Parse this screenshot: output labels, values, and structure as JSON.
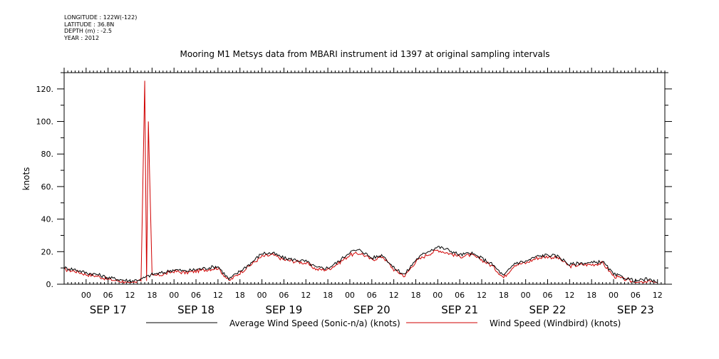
{
  "meta": {
    "longitude": "LONGITUDE : 122W(-122)",
    "latitude": "LATITUDE : 36.8N",
    "depth": "DEPTH (m) : -2.5",
    "year": "YEAR : 2012"
  },
  "chart_data": {
    "type": "line",
    "title": "Mooring M1 Metsys data from MBARI instrument id 1397 at original sampling intervals",
    "ylabel": "knots",
    "xlabel": "",
    "ylim": [
      0,
      130
    ],
    "yticks": [
      "0.",
      "20.",
      "40.",
      "60.",
      "80.",
      "100.",
      "120."
    ],
    "xlim_hours": [
      -6,
      158
    ],
    "hour_tick_labels": [
      "00",
      "06",
      "12",
      "18",
      "00",
      "06",
      "12",
      "18",
      "00",
      "06",
      "12",
      "18",
      "00",
      "06",
      "12",
      "18",
      "00",
      "06",
      "12",
      "18",
      "00",
      "06",
      "12",
      "18",
      "00",
      "06",
      "12"
    ],
    "day_labels": [
      "SEP 17",
      "SEP 18",
      "SEP 19",
      "SEP 20",
      "SEP 21",
      "SEP 22",
      "SEP 23"
    ],
    "grid": false,
    "legend_position": "bottom",
    "series": [
      {
        "name": "Average Wind Speed (Sonic-n/a) (knots)",
        "color": "#000000",
        "x_hours": [
          -6,
          -3,
          0,
          3,
          6,
          9,
          12,
          15,
          18,
          21,
          24,
          27,
          30,
          33,
          36,
          39,
          42,
          45,
          48,
          51,
          54,
          57,
          60,
          63,
          66,
          69,
          72,
          75,
          78,
          81,
          84,
          87,
          90,
          93,
          96,
          99,
          102,
          105,
          108,
          111,
          114,
          117,
          120,
          123,
          126,
          129,
          132,
          135,
          138,
          141,
          144,
          147,
          150,
          153,
          156
        ],
        "values": [
          10,
          9,
          7,
          6,
          4,
          3,
          2,
          3,
          6,
          7,
          9,
          8,
          9,
          10,
          11,
          3,
          8,
          13,
          19,
          19,
          16,
          15,
          14,
          10,
          10,
          14,
          20,
          21,
          16,
          18,
          10,
          6,
          15,
          20,
          23,
          21,
          18,
          19,
          16,
          12,
          5,
          13,
          14,
          17,
          18,
          17,
          12,
          13,
          13,
          14,
          6,
          4,
          2,
          3,
          1
        ]
      },
      {
        "name": "Wind Speed (Windbird) (knots)",
        "color": "#d00000",
        "x_hours": [
          -6,
          -3,
          0,
          3,
          6,
          9,
          12,
          15,
          16,
          16.5,
          17,
          18,
          21,
          24,
          27,
          30,
          33,
          36,
          39,
          42,
          45,
          48,
          51,
          54,
          57,
          60,
          63,
          66,
          69,
          72,
          75,
          78,
          81,
          84,
          87,
          90,
          93,
          96,
          99,
          102,
          105,
          108,
          111,
          114,
          117,
          120,
          123,
          126,
          129,
          132,
          135,
          138,
          141,
          144,
          147,
          150,
          153,
          156
        ],
        "values": [
          9,
          8,
          6,
          5,
          3,
          2,
          1,
          2,
          125,
          2,
          100,
          5,
          6,
          8,
          7,
          8,
          9,
          10,
          2,
          7,
          12,
          17,
          18,
          15,
          14,
          13,
          9,
          9,
          13,
          18,
          19,
          15,
          17,
          9,
          5,
          14,
          18,
          21,
          19,
          17,
          18,
          15,
          11,
          4,
          12,
          13,
          16,
          17,
          16,
          11,
          12,
          12,
          13,
          5,
          3,
          1,
          2,
          1
        ]
      }
    ]
  }
}
